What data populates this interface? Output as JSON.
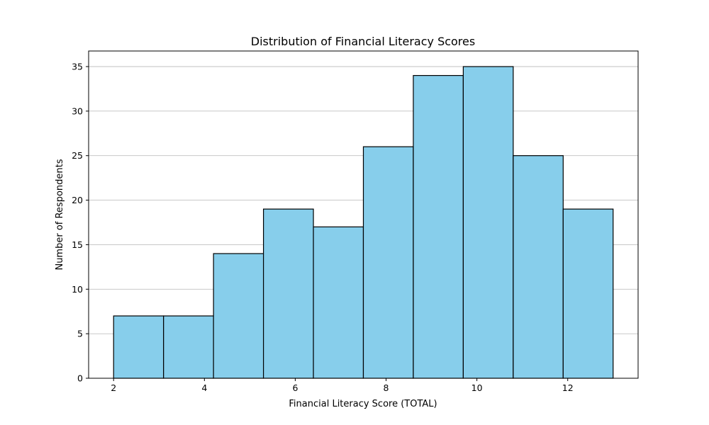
{
  "chart_data": {
    "type": "bar",
    "subtype": "histogram",
    "title": "Distribution of Financial Literacy Scores",
    "xlabel": "Financial Literacy Score (TOTAL)",
    "ylabel": "Number of Respondents",
    "bin_edges": [
      2.0,
      3.1,
      4.2,
      5.3,
      6.4,
      7.5,
      8.6,
      9.7,
      10.8,
      11.9,
      13.0
    ],
    "values": [
      7,
      7,
      14,
      19,
      17,
      26,
      34,
      35,
      25,
      19
    ],
    "xlim": [
      1.45,
      13.55
    ],
    "ylim": [
      0,
      36.75
    ],
    "xticks": [
      2,
      4,
      6,
      8,
      10,
      12
    ],
    "yticks": [
      0,
      5,
      10,
      15,
      20,
      25,
      30,
      35
    ],
    "grid": "y-axis only",
    "bar_color": "#87ceeb",
    "edge_color": "#000000"
  }
}
